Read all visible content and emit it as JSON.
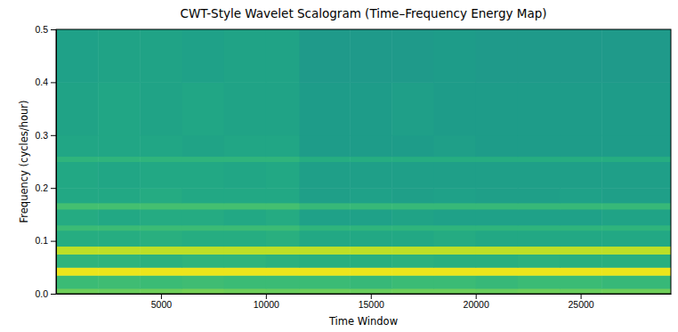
{
  "chart_data": {
    "type": "heatmap",
    "title": "CWT-Style Wavelet Scalogram (Time–Frequency Energy Map)",
    "x_label": "Time Window",
    "y_label": "Frequency (cycles/hour)",
    "xlim": [
      0,
      29300
    ],
    "xticks": [
      5000,
      10000,
      15000,
      20000,
      25000
    ],
    "ylim": [
      0,
      0.5
    ],
    "yticks": [
      {
        "value": 0,
        "label": "0.0"
      },
      0.1,
      0.2,
      0.3,
      0.4,
      0.5
    ],
    "x_edges": [
      0,
      2000,
      4000,
      6000,
      8000,
      10000,
      11600,
      14000,
      16000,
      18000,
      20000,
      22000,
      24000,
      26000,
      29300
    ],
    "y_edges": [
      0,
      0.01,
      0.035,
      0.05,
      0.075,
      0.09,
      0.12,
      0.13,
      0.16,
      0.172,
      0.2,
      0.25,
      0.26,
      0.3,
      0.4,
      0.5
    ],
    "color_range": [
      0,
      1
    ],
    "cells": [
      [
        0.78,
        0.77,
        0.78,
        0.79,
        0.78,
        0.77,
        0.78,
        0.77,
        0.78,
        0.78,
        0.77,
        0.78,
        0.77,
        0.78
      ],
      [
        0.68,
        0.69,
        0.68,
        0.69,
        0.68,
        0.68,
        0.68,
        0.67,
        0.68,
        0.68,
        0.67,
        0.68,
        0.68,
        0.67
      ],
      [
        0.97,
        0.97,
        0.97,
        0.97,
        0.97,
        0.97,
        0.97,
        0.97,
        0.97,
        0.97,
        0.97,
        0.97,
        0.97,
        0.97
      ],
      [
        0.65,
        0.65,
        0.64,
        0.65,
        0.65,
        0.64,
        0.63,
        0.63,
        0.64,
        0.63,
        0.63,
        0.64,
        0.63,
        0.63
      ],
      [
        0.9,
        0.9,
        0.9,
        0.9,
        0.9,
        0.9,
        0.9,
        0.9,
        0.9,
        0.9,
        0.9,
        0.9,
        0.9,
        0.9
      ],
      [
        0.62,
        0.62,
        0.63,
        0.62,
        0.62,
        0.63,
        0.6,
        0.6,
        0.6,
        0.61,
        0.6,
        0.6,
        0.6,
        0.6
      ],
      [
        0.68,
        0.68,
        0.68,
        0.68,
        0.68,
        0.68,
        0.65,
        0.65,
        0.65,
        0.65,
        0.65,
        0.65,
        0.65,
        0.65
      ],
      [
        0.61,
        0.6,
        0.61,
        0.61,
        0.6,
        0.61,
        0.57,
        0.57,
        0.58,
        0.57,
        0.57,
        0.57,
        0.57,
        0.58
      ],
      [
        0.7,
        0.7,
        0.7,
        0.7,
        0.7,
        0.7,
        0.67,
        0.67,
        0.67,
        0.67,
        0.67,
        0.67,
        0.67,
        0.67
      ],
      [
        0.6,
        0.6,
        0.61,
        0.6,
        0.6,
        0.6,
        0.56,
        0.57,
        0.56,
        0.57,
        0.56,
        0.56,
        0.57,
        0.56
      ],
      [
        0.6,
        0.59,
        0.6,
        0.6,
        0.59,
        0.6,
        0.56,
        0.56,
        0.56,
        0.56,
        0.56,
        0.56,
        0.56,
        0.56
      ],
      [
        0.65,
        0.65,
        0.65,
        0.65,
        0.65,
        0.65,
        0.62,
        0.62,
        0.62,
        0.62,
        0.62,
        0.62,
        0.62,
        0.62
      ],
      [
        0.59,
        0.59,
        0.59,
        0.58,
        0.59,
        0.59,
        0.55,
        0.55,
        0.55,
        0.56,
        0.55,
        0.55,
        0.55,
        0.55
      ],
      [
        0.58,
        0.59,
        0.58,
        0.59,
        0.58,
        0.58,
        0.55,
        0.55,
        0.56,
        0.55,
        0.55,
        0.55,
        0.55,
        0.55
      ],
      [
        0.57,
        0.58,
        0.58,
        0.57,
        0.58,
        0.58,
        0.54,
        0.54,
        0.54,
        0.55,
        0.54,
        0.54,
        0.54,
        0.54
      ]
    ]
  }
}
